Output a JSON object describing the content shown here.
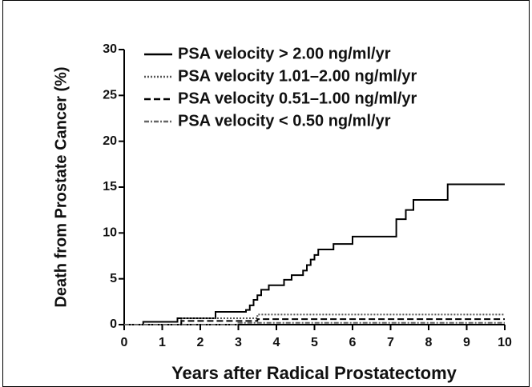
{
  "chart_data": {
    "type": "line",
    "step": "post",
    "xlabel": "Years after Radical Prostatectomy",
    "ylabel": "Death from Prostate Cancer (%)",
    "xlim": [
      0,
      10
    ],
    "xticks": [
      0,
      1,
      2,
      3,
      4,
      5,
      6,
      7,
      8,
      9,
      10
    ],
    "ylim": [
      0,
      30
    ],
    "yticks": [
      0,
      5,
      10,
      15,
      20,
      25,
      30
    ],
    "legend": "upper left",
    "series": [
      {
        "name": "PSA velocity > 2.00 ng/ml/yr",
        "color": "#000000",
        "dash": "solid",
        "x": [
          0,
          0.5,
          1.4,
          2.4,
          3.2,
          3.3,
          3.4,
          3.5,
          3.6,
          3.8,
          4.2,
          4.4,
          4.7,
          4.8,
          4.9,
          5.0,
          5.1,
          5.5,
          6.0,
          7.15,
          7.4,
          7.6,
          8.5,
          10
        ],
        "values": [
          0,
          0.3,
          0.7,
          1.4,
          1.6,
          2.1,
          2.7,
          3.2,
          3.8,
          4.3,
          4.9,
          5.4,
          5.9,
          6.5,
          7.1,
          7.6,
          8.2,
          8.8,
          9.6,
          11.5,
          12.5,
          13.6,
          15.3,
          15.3
        ]
      },
      {
        "name": "PSA velocity 1.01–2.00 ng/ml/yr",
        "color": "#555555",
        "dash": "dotted",
        "x": [
          0,
          1.5,
          3.5,
          10
        ],
        "values": [
          0,
          0.7,
          1.1,
          1.1
        ]
      },
      {
        "name": "PSA velocity 0.51–1.00 ng/ml/yr",
        "color": "#000000",
        "dash": "dashed",
        "x": [
          0,
          1.5,
          3.5,
          10
        ],
        "values": [
          0,
          0.4,
          0.6,
          0.6
        ]
      },
      {
        "name": "PSA velocity < 0.50 ng/ml/yr",
        "color": "#666666",
        "dash": "dashdot",
        "x": [
          0,
          3,
          10
        ],
        "values": [
          0,
          0.2,
          0.2
        ]
      }
    ]
  }
}
